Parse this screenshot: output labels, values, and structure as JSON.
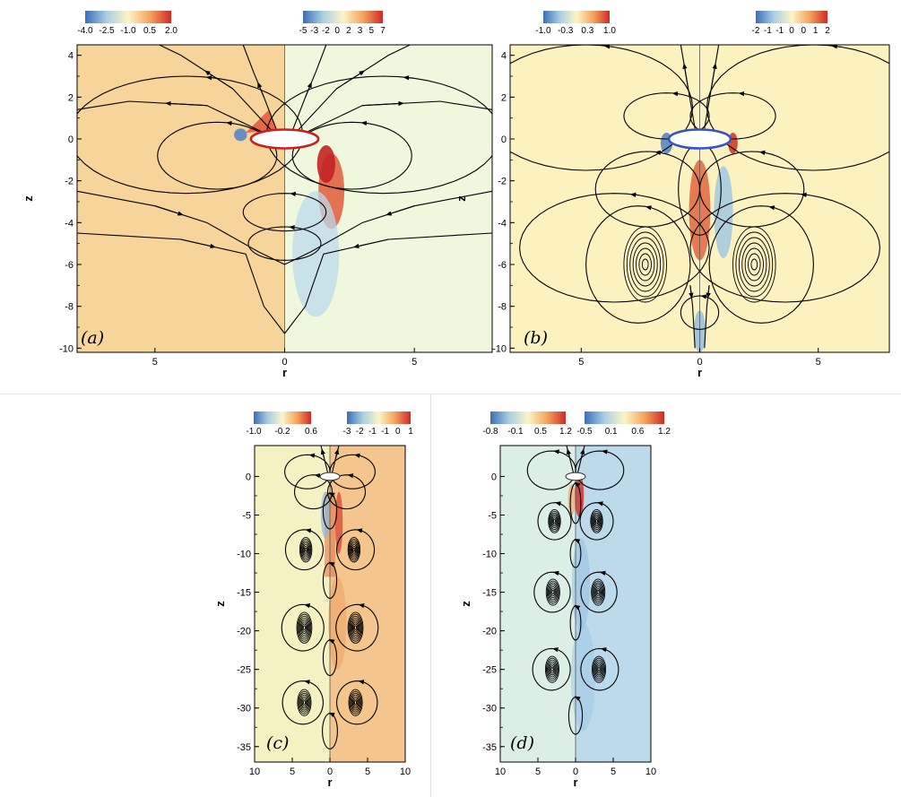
{
  "chart_data": [
    {
      "type": "heatmap",
      "panel_label": "(a)",
      "xlabel": "r",
      "ylabel": "z",
      "xlim": [
        -8,
        8
      ],
      "ylim": [
        -10.2,
        4.5
      ],
      "x_axis_display": "absolute r mirrored about 0",
      "x_ticks": [
        5,
        0,
        5
      ],
      "y_ticks": [
        4,
        2,
        0,
        -2,
        -4,
        -6,
        -8,
        -10
      ],
      "colorbars": [
        {
          "side": "left",
          "ticks": [
            "-4.0",
            "-2.5",
            "-1.0",
            "0.5",
            "2.0"
          ]
        },
        {
          "side": "right",
          "ticks": [
            "-5",
            "-3",
            "-2",
            "0",
            "2",
            "3",
            "5",
            "7"
          ]
        }
      ],
      "field_colors": {
        "left": "#f6d49a",
        "right": "#eff7dc"
      },
      "body_outline_color": "#cc1f1f"
    },
    {
      "type": "heatmap",
      "panel_label": "(b)",
      "xlabel": "r",
      "ylabel": "z",
      "xlim": [
        -8,
        8
      ],
      "ylim": [
        -10.2,
        4.5
      ],
      "x_axis_display": "absolute r mirrored about 0",
      "x_ticks": [
        5,
        0,
        5
      ],
      "y_ticks": [
        4,
        2,
        0,
        -2,
        -4,
        -6,
        -8,
        -10
      ],
      "colorbars": [
        {
          "side": "left",
          "ticks": [
            "-1.0",
            "-0.3",
            "0.3",
            "1.0"
          ]
        },
        {
          "side": "right",
          "ticks": [
            "-2",
            "-1",
            "-1",
            "0",
            "0",
            "1",
            "2"
          ]
        }
      ],
      "field_colors": {
        "left": "#fbf2c0",
        "right": "#fbf2c0"
      },
      "body_outline_color": "#3553c9"
    },
    {
      "type": "heatmap",
      "panel_label": "(c)",
      "xlabel": "r",
      "ylabel": "z",
      "xlim": [
        -10,
        10
      ],
      "ylim": [
        -37,
        4
      ],
      "x_axis_display": "absolute r mirrored about 0",
      "x_ticks": [
        10,
        5,
        0,
        5,
        10
      ],
      "y_ticks": [
        0,
        -5,
        -10,
        -15,
        -20,
        -25,
        -30,
        -35
      ],
      "colorbars": [
        {
          "side": "left",
          "ticks": [
            "-1.0",
            "-0.2",
            "0.6"
          ]
        },
        {
          "side": "right",
          "ticks": [
            "-3",
            "-2",
            "-1",
            "-1",
            "0",
            "1"
          ]
        }
      ],
      "field_colors": {
        "left": "#f4f1c3",
        "right": "#f4c58c"
      }
    },
    {
      "type": "heatmap",
      "panel_label": "(d)",
      "xlabel": "r",
      "ylabel": "z",
      "xlim": [
        -10,
        10
      ],
      "ylim": [
        -37,
        4
      ],
      "x_axis_display": "absolute r mirrored about 0",
      "x_ticks": [
        10,
        5,
        0,
        5,
        10
      ],
      "y_ticks": [
        0,
        -5,
        -10,
        -15,
        -20,
        -25,
        -30,
        -35
      ],
      "colorbars": [
        {
          "side": "left",
          "ticks": [
            "-0.8",
            "-0.1",
            "0.5",
            "1.2"
          ]
        },
        {
          "side": "right",
          "ticks": [
            "-0.5",
            "0.1",
            "0.6",
            "1.2"
          ]
        }
      ],
      "field_colors": {
        "left": "#dcefe7",
        "right": "#bcdaea"
      }
    }
  ]
}
